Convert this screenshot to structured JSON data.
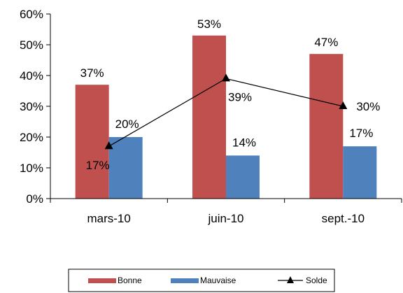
{
  "chart_data": {
    "type": "bar",
    "categories": [
      "mars-10",
      "juin-10",
      "sept.-10"
    ],
    "ylim": [
      0,
      60
    ],
    "yticks": [
      0,
      10,
      20,
      30,
      40,
      50,
      60
    ],
    "y_tick_format": "percent",
    "grid": false,
    "legend_position": "bottom",
    "series": [
      {
        "name": "Bonne",
        "kind": "bar",
        "color": "#C0504D",
        "values": [
          37,
          53,
          47
        ],
        "labels": [
          "37%",
          "53%",
          "47%"
        ]
      },
      {
        "name": "Mauvaise",
        "kind": "bar",
        "color": "#4F81BD",
        "values": [
          20,
          14,
          17
        ],
        "labels": [
          "20%",
          "14%",
          "17%"
        ]
      },
      {
        "name": "Solde",
        "kind": "line",
        "color": "#000000",
        "marker": "triangle",
        "values": [
          17,
          39,
          30
        ],
        "labels": [
          "17%",
          "39%",
          "30%"
        ]
      }
    ]
  }
}
